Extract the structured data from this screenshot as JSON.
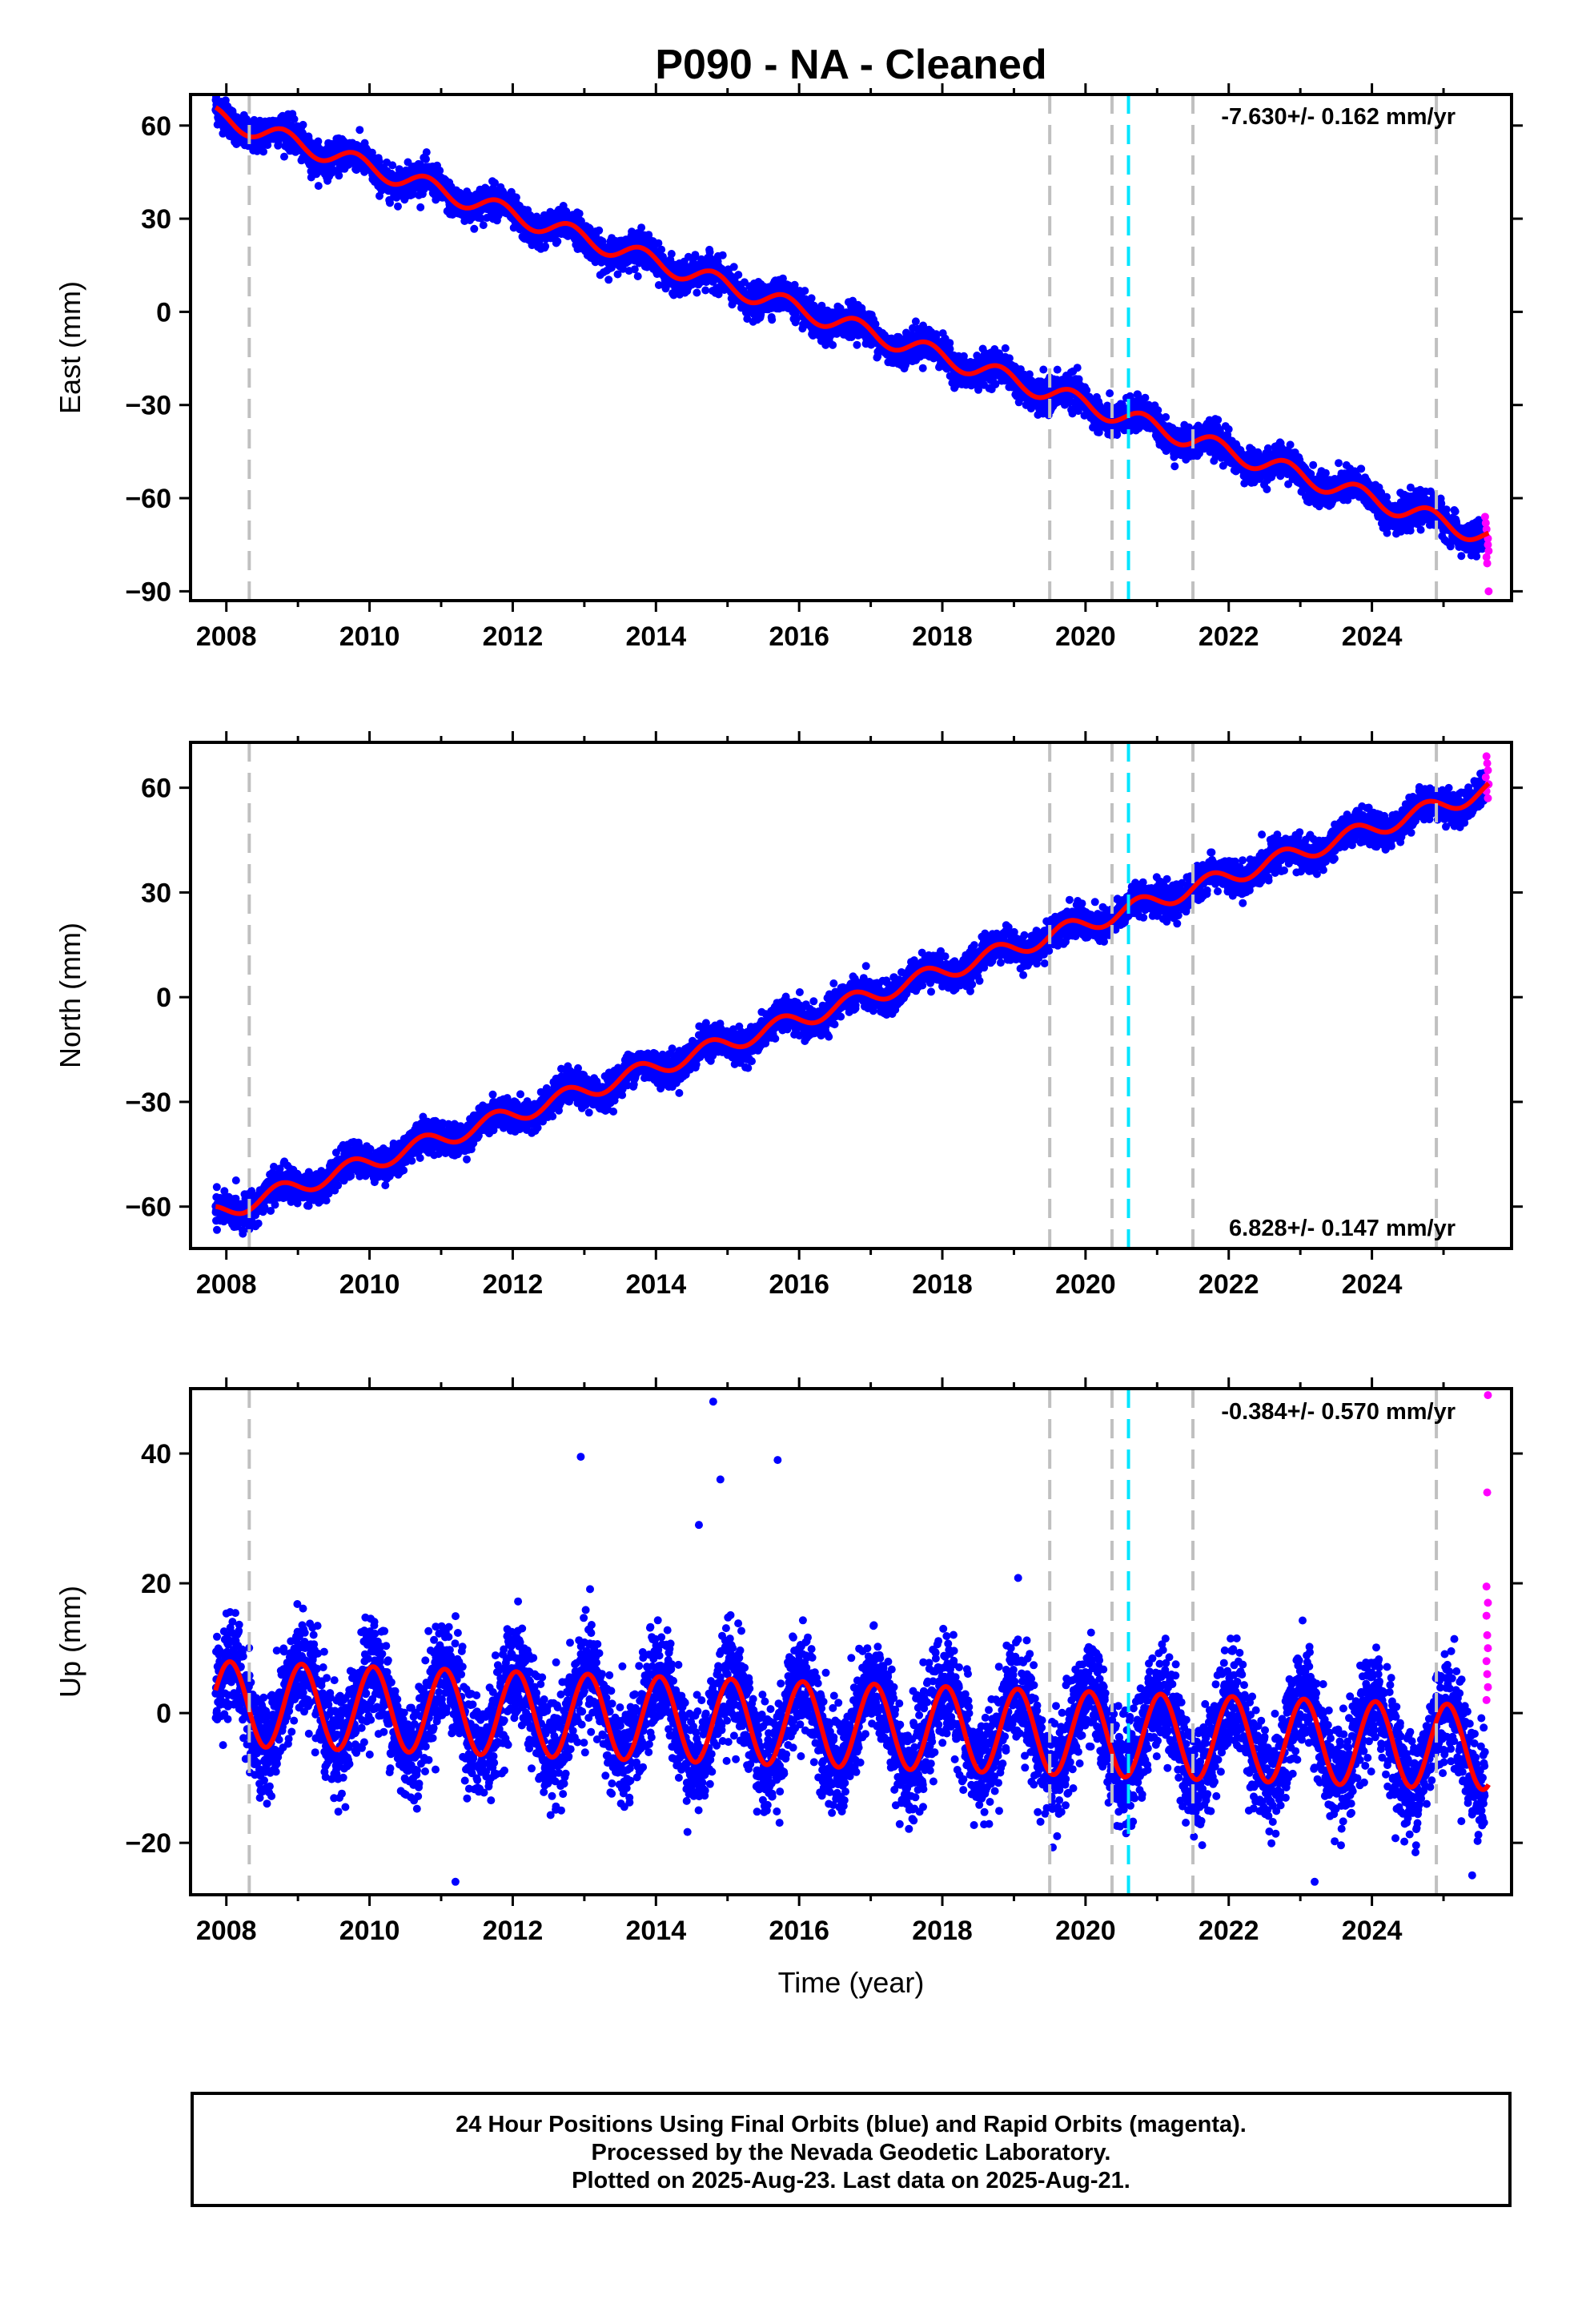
{
  "title": "P090  - NA - Cleaned",
  "footer": {
    "line1": "24 Hour Positions Using Final Orbits (blue) and Rapid Orbits (magenta).",
    "line2": "Processed by the Nevada Geodetic Laboratory.",
    "line3": "Plotted on 2025-Aug-23. Last data on 2025-Aug-21."
  },
  "colors": {
    "final": "#0000ff",
    "rapid": "#ff00ff",
    "model": "#ff0000",
    "event": "#c0c0c0",
    "equipment": "#00e5ff"
  },
  "chart_data": [
    {
      "type": "scatter",
      "component": "east",
      "title": "P090  - NA - Cleaned",
      "xlabel": "",
      "ylabel": "East (mm)",
      "rate_label": "-7.630+/- 0.162 mm/yr",
      "xlim": [
        2007.5,
        2025.95
      ],
      "ylim": [
        -93,
        70
      ],
      "xticks": [
        2008,
        2010,
        2012,
        2014,
        2016,
        2018,
        2020,
        2022,
        2024
      ],
      "yticks": [
        -90,
        -60,
        -30,
        0,
        30,
        60
      ],
      "ytick_labels": [
        "−90",
        "−60",
        "−30",
        "0",
        "30",
        "60"
      ],
      "grid": false,
      "start": 2007.85,
      "end": 2025.63,
      "model": {
        "offset_mm": 63.0,
        "rate_mm_yr": -7.63,
        "annual_amp_mm": 3.0,
        "annual_phase": 0.3,
        "scatter_mm": 2.5
      },
      "event_lines": [
        2008.32,
        2019.5,
        2020.37,
        2021.5,
        2024.9
      ],
      "equipment_lines": [
        2020.6
      ],
      "rapid_points": [
        [
          2025.58,
          -66
        ],
        [
          2025.6,
          -70
        ],
        [
          2025.62,
          -73
        ],
        [
          2025.62,
          -75
        ],
        [
          2025.63,
          -77
        ],
        [
          2025.6,
          -79
        ],
        [
          2025.61,
          -81
        ],
        [
          2025.63,
          -90
        ],
        [
          2025.59,
          -68
        ]
      ]
    },
    {
      "type": "scatter",
      "component": "north",
      "xlabel": "",
      "ylabel": "North (mm)",
      "rate_label": "6.828+/- 0.147 mm/yr",
      "xlim": [
        2007.5,
        2025.95
      ],
      "ylim": [
        -72,
        73
      ],
      "xticks": [
        2008,
        2010,
        2012,
        2014,
        2016,
        2018,
        2020,
        2022,
        2024
      ],
      "yticks": [
        -60,
        -30,
        0,
        30,
        60
      ],
      "ytick_labels": [
        "−60",
        "−30",
        "0",
        "30",
        "60"
      ],
      "grid": false,
      "start": 2007.85,
      "end": 2025.63,
      "model": {
        "offset_mm": -62.0,
        "rate_mm_yr": 6.828,
        "annual_amp_mm": 2.5,
        "annual_phase": 0.35,
        "scatter_mm": 2.2
      },
      "event_lines": [
        2008.32,
        2019.5,
        2020.37,
        2021.5,
        2024.9
      ],
      "equipment_lines": [
        2020.6
      ],
      "rapid_points": [
        [
          2025.6,
          69
        ],
        [
          2025.61,
          67
        ],
        [
          2025.62,
          65
        ],
        [
          2025.59,
          63
        ],
        [
          2025.63,
          61
        ],
        [
          2025.6,
          59
        ],
        [
          2025.62,
          57
        ]
      ]
    },
    {
      "type": "scatter",
      "component": "up",
      "xlabel": "Time (year)",
      "ylabel": "Up (mm)",
      "rate_label": "-0.384+/- 0.570 mm/yr",
      "xlim": [
        2007.5,
        2025.95
      ],
      "ylim": [
        -28,
        50
      ],
      "xticks": [
        2008,
        2010,
        2012,
        2014,
        2016,
        2018,
        2020,
        2022,
        2024
      ],
      "yticks": [
        -20,
        0,
        20,
        40
      ],
      "ytick_labels": [
        "−20",
        "0",
        "20",
        "40"
      ],
      "grid": false,
      "start": 2007.85,
      "end": 2025.63,
      "model": {
        "offset_mm": 1.5,
        "rate_mm_yr": -0.384,
        "annual_amp_mm": 6.5,
        "annual_phase": 0.05,
        "scatter_mm": 4.0
      },
      "event_lines": [
        2008.32,
        2019.5,
        2020.37,
        2021.5,
        2024.9
      ],
      "equipment_lines": [
        2020.6
      ],
      "outliers": [
        [
          2012.95,
          39.5
        ],
        [
          2014.8,
          48
        ],
        [
          2015.7,
          39
        ],
        [
          2014.9,
          36
        ],
        [
          2014.6,
          29
        ],
        [
          2011.2,
          -26
        ],
        [
          2023.2,
          -26
        ],
        [
          2025.4,
          -25
        ]
      ],
      "rapid_points": [
        [
          2025.62,
          49
        ],
        [
          2025.61,
          34
        ],
        [
          2025.6,
          19.5
        ],
        [
          2025.62,
          17
        ],
        [
          2025.6,
          15
        ],
        [
          2025.61,
          12
        ],
        [
          2025.62,
          10
        ],
        [
          2025.6,
          8
        ],
        [
          2025.61,
          6
        ],
        [
          2025.62,
          4
        ],
        [
          2025.6,
          2
        ]
      ]
    }
  ]
}
